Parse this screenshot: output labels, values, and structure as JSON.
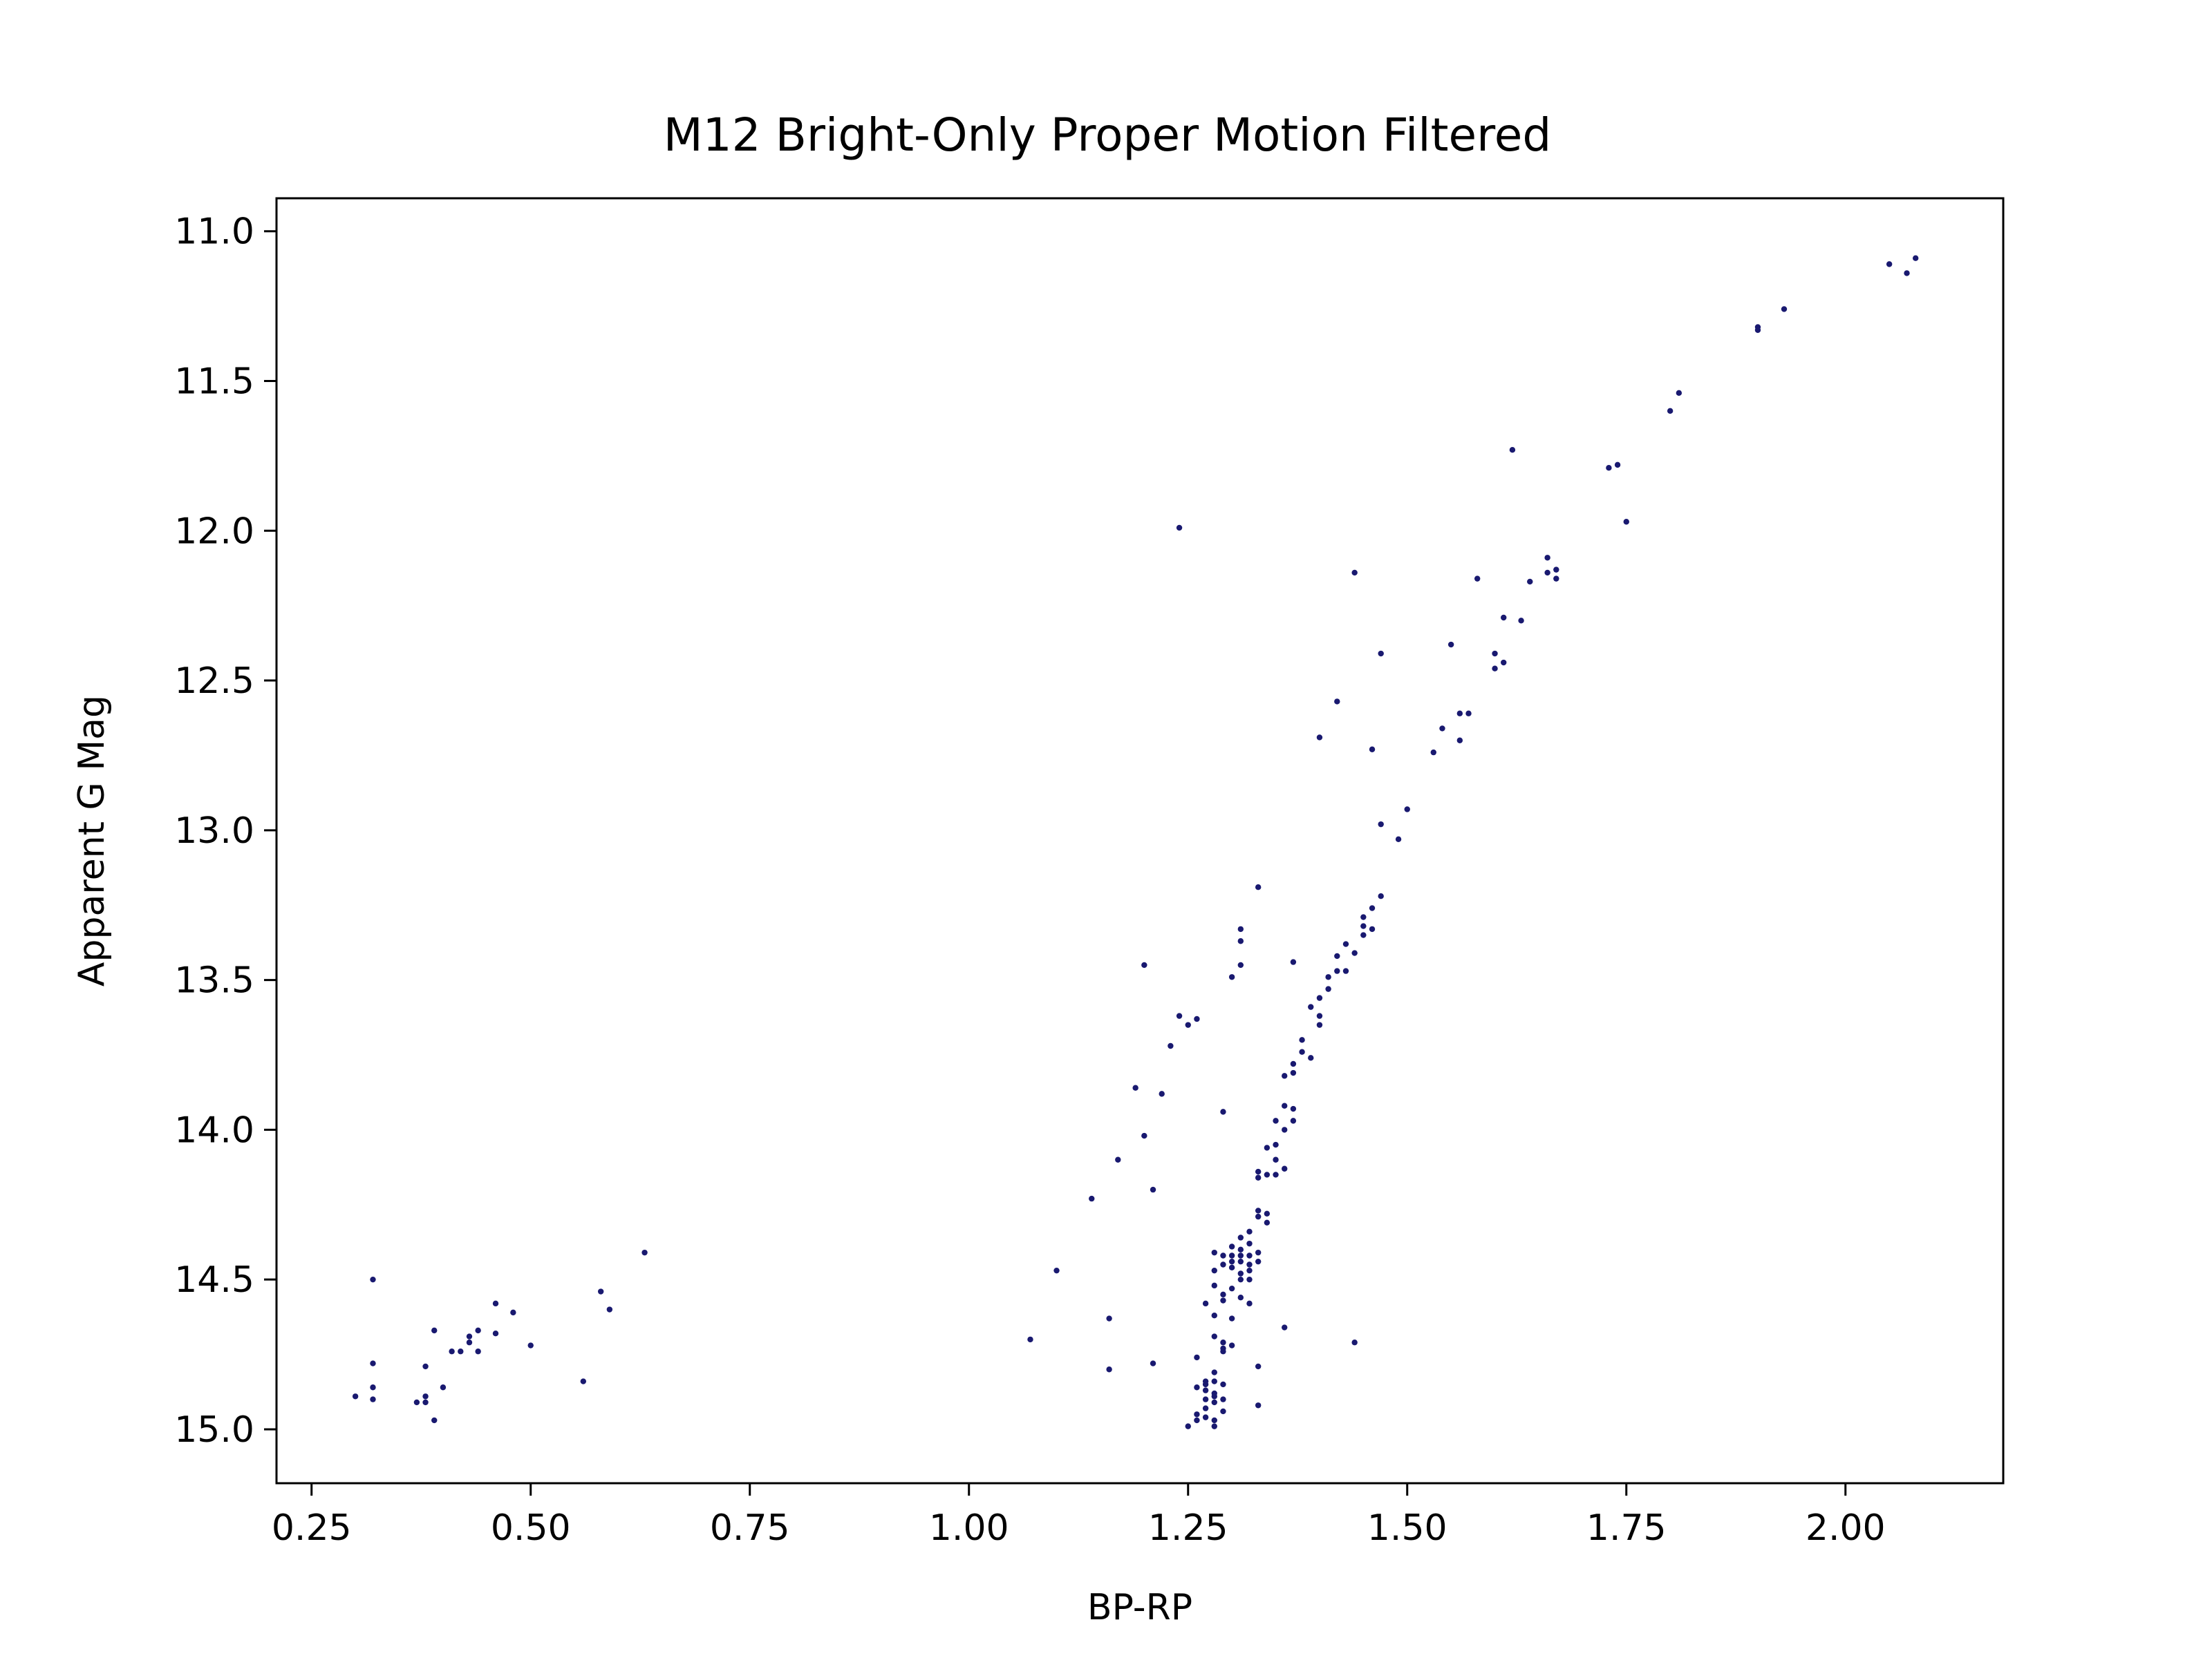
{
  "chart_data": {
    "type": "scatter",
    "title": "M12 Bright-Only Proper Motion Filtered",
    "xlabel": "BP-RP",
    "ylabel": "Apparent G Mag",
    "xlim": [
      0.21,
      2.18
    ],
    "ylim": [
      15.18,
      10.89
    ],
    "y_inverted": true,
    "x_ticks": [
      "0.25",
      "0.50",
      "0.75",
      "1.00",
      "1.25",
      "1.50",
      "1.75",
      "2.00"
    ],
    "y_ticks": [
      "11.0",
      "11.5",
      "12.0",
      "12.5",
      "13.0",
      "13.5",
      "14.0",
      "14.5",
      "15.0"
    ],
    "grid": false,
    "legend": "none",
    "marker_color": "#191970",
    "series": [
      {
        "points": [
          [
            2.08,
            11.09
          ],
          [
            2.05,
            11.11
          ],
          [
            2.07,
            11.14
          ],
          [
            1.93,
            11.26
          ],
          [
            1.9,
            11.32
          ],
          [
            1.9,
            11.33
          ],
          [
            1.81,
            11.54
          ],
          [
            1.8,
            11.6
          ],
          [
            1.62,
            11.73
          ],
          [
            1.74,
            11.78
          ],
          [
            1.73,
            11.79
          ],
          [
            1.75,
            11.97
          ],
          [
            1.24,
            11.99
          ],
          [
            1.66,
            12.09
          ],
          [
            1.66,
            12.14
          ],
          [
            1.67,
            12.13
          ],
          [
            1.67,
            12.16
          ],
          [
            1.44,
            12.14
          ],
          [
            1.58,
            12.16
          ],
          [
            1.64,
            12.17
          ],
          [
            1.61,
            12.29
          ],
          [
            1.63,
            12.3
          ],
          [
            1.55,
            12.38
          ],
          [
            1.47,
            12.41
          ],
          [
            1.6,
            12.41
          ],
          [
            1.61,
            12.44
          ],
          [
            1.6,
            12.46
          ],
          [
            1.42,
            12.57
          ],
          [
            1.56,
            12.61
          ],
          [
            1.57,
            12.61
          ],
          [
            1.54,
            12.66
          ],
          [
            1.4,
            12.69
          ],
          [
            1.56,
            12.7
          ],
          [
            1.46,
            12.73
          ],
          [
            1.53,
            12.74
          ],
          [
            1.5,
            12.93
          ],
          [
            1.47,
            12.98
          ],
          [
            1.49,
            13.03
          ],
          [
            1.33,
            13.19
          ],
          [
            1.47,
            13.22
          ],
          [
            1.46,
            13.26
          ],
          [
            1.45,
            13.29
          ],
          [
            1.45,
            13.32
          ],
          [
            1.46,
            13.33
          ],
          [
            1.45,
            13.35
          ],
          [
            1.31,
            13.33
          ],
          [
            1.31,
            13.37
          ],
          [
            1.43,
            13.38
          ],
          [
            1.44,
            13.41
          ],
          [
            1.42,
            13.42
          ],
          [
            1.37,
            13.44
          ],
          [
            1.31,
            13.45
          ],
          [
            1.2,
            13.45
          ],
          [
            1.42,
            13.47
          ],
          [
            1.43,
            13.47
          ],
          [
            1.41,
            13.49
          ],
          [
            1.3,
            13.49
          ],
          [
            1.41,
            13.53
          ],
          [
            1.4,
            13.56
          ],
          [
            1.24,
            13.62
          ],
          [
            1.26,
            13.63
          ],
          [
            1.25,
            13.65
          ],
          [
            1.39,
            13.59
          ],
          [
            1.4,
            13.62
          ],
          [
            1.4,
            13.65
          ],
          [
            1.38,
            13.7
          ],
          [
            1.23,
            13.72
          ],
          [
            1.38,
            13.74
          ],
          [
            1.39,
            13.76
          ],
          [
            1.37,
            13.78
          ],
          [
            1.37,
            13.81
          ],
          [
            1.36,
            13.82
          ],
          [
            1.19,
            13.86
          ],
          [
            1.22,
            13.88
          ],
          [
            1.36,
            13.92
          ],
          [
            1.37,
            13.93
          ],
          [
            1.29,
            13.94
          ],
          [
            1.37,
            13.97
          ],
          [
            1.35,
            13.97
          ],
          [
            1.36,
            14.0
          ],
          [
            1.2,
            14.02
          ],
          [
            1.35,
            14.05
          ],
          [
            1.34,
            14.06
          ],
          [
            1.17,
            14.1
          ],
          [
            1.35,
            14.1
          ],
          [
            1.36,
            14.13
          ],
          [
            1.33,
            14.14
          ],
          [
            1.34,
            14.15
          ],
          [
            1.35,
            14.15
          ],
          [
            1.33,
            14.16
          ],
          [
            1.21,
            14.2
          ],
          [
            1.14,
            14.23
          ],
          [
            1.33,
            14.27
          ],
          [
            1.34,
            14.28
          ],
          [
            1.33,
            14.29
          ],
          [
            1.34,
            14.31
          ],
          [
            1.32,
            14.34
          ],
          [
            1.31,
            14.36
          ],
          [
            1.32,
            14.38
          ],
          [
            1.3,
            14.39
          ],
          [
            1.31,
            14.4
          ],
          [
            1.28,
            14.41
          ],
          [
            1.3,
            14.42
          ],
          [
            1.31,
            14.42
          ],
          [
            1.32,
            14.42
          ],
          [
            1.33,
            14.41
          ],
          [
            1.29,
            14.42
          ],
          [
            1.3,
            14.44
          ],
          [
            1.31,
            14.44
          ],
          [
            1.32,
            14.45
          ],
          [
            1.33,
            14.44
          ],
          [
            1.29,
            14.45
          ],
          [
            1.3,
            14.46
          ],
          [
            1.32,
            14.47
          ],
          [
            1.1,
            14.47
          ],
          [
            1.28,
            14.47
          ],
          [
            1.31,
            14.48
          ],
          [
            1.31,
            14.5
          ],
          [
            1.32,
            14.5
          ],
          [
            1.3,
            14.53
          ],
          [
            1.28,
            14.52
          ],
          [
            1.29,
            14.55
          ],
          [
            1.31,
            14.56
          ],
          [
            1.27,
            14.58
          ],
          [
            1.29,
            14.57
          ],
          [
            1.32,
            14.58
          ],
          [
            1.28,
            14.62
          ],
          [
            1.16,
            14.63
          ],
          [
            1.3,
            14.63
          ],
          [
            1.36,
            14.66
          ],
          [
            1.28,
            14.69
          ],
          [
            1.07,
            14.7
          ],
          [
            1.29,
            14.71
          ],
          [
            1.29,
            14.73
          ],
          [
            1.3,
            14.72
          ],
          [
            1.44,
            14.71
          ],
          [
            1.29,
            14.74
          ],
          [
            1.26,
            14.76
          ],
          [
            1.21,
            14.78
          ],
          [
            1.33,
            14.79
          ],
          [
            1.16,
            14.8
          ],
          [
            1.28,
            14.81
          ],
          [
            1.27,
            14.84
          ],
          [
            1.27,
            14.85
          ],
          [
            1.28,
            14.84
          ],
          [
            1.26,
            14.86
          ],
          [
            1.27,
            14.87
          ],
          [
            1.29,
            14.85
          ],
          [
            1.28,
            14.88
          ],
          [
            1.28,
            14.89
          ],
          [
            1.27,
            14.9
          ],
          [
            1.29,
            14.9
          ],
          [
            1.28,
            14.91
          ],
          [
            1.33,
            14.92
          ],
          [
            1.27,
            14.93
          ],
          [
            1.29,
            14.94
          ],
          [
            1.26,
            14.95
          ],
          [
            1.27,
            14.96
          ],
          [
            1.28,
            14.97
          ],
          [
            1.26,
            14.97
          ],
          [
            1.25,
            14.99
          ],
          [
            1.28,
            14.99
          ],
          [
            0.63,
            14.41
          ],
          [
            0.32,
            14.5
          ],
          [
            0.58,
            14.54
          ],
          [
            0.46,
            14.58
          ],
          [
            0.59,
            14.6
          ],
          [
            0.48,
            14.61
          ],
          [
            0.39,
            14.67
          ],
          [
            0.44,
            14.67
          ],
          [
            0.46,
            14.68
          ],
          [
            0.43,
            14.69
          ],
          [
            0.43,
            14.71
          ],
          [
            0.5,
            14.72
          ],
          [
            0.41,
            14.74
          ],
          [
            0.42,
            14.74
          ],
          [
            0.44,
            14.74
          ],
          [
            0.38,
            14.79
          ],
          [
            0.32,
            14.78
          ],
          [
            0.4,
            14.86
          ],
          [
            0.32,
            14.86
          ],
          [
            0.56,
            14.84
          ],
          [
            0.3,
            14.89
          ],
          [
            0.38,
            14.89
          ],
          [
            0.32,
            14.9
          ],
          [
            0.38,
            14.91
          ],
          [
            0.37,
            14.91
          ],
          [
            0.39,
            14.97
          ]
        ]
      }
    ]
  }
}
